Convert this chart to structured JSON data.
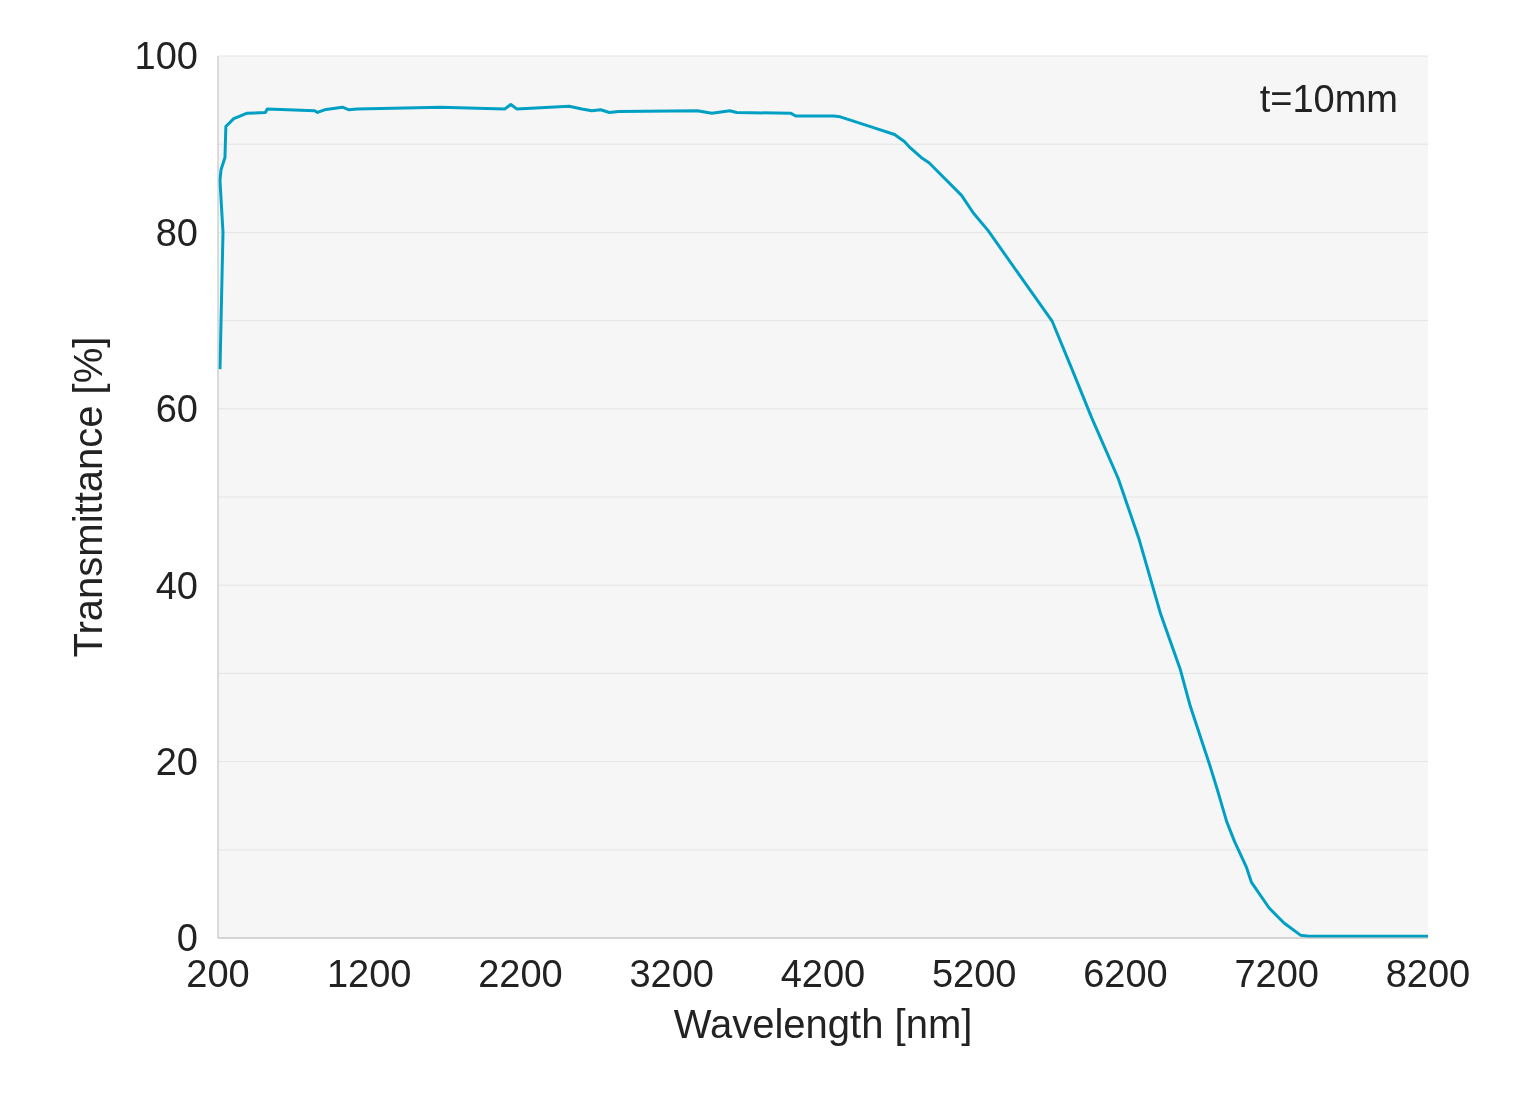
{
  "chart_data": {
    "type": "line",
    "xlabel": "Wavelength [nm]",
    "ylabel": "Transmittance [%]",
    "annotations": [
      "t=10mm"
    ],
    "xlim": [
      200,
      8200
    ],
    "xticks": [
      200,
      1200,
      2200,
      3200,
      4200,
      5200,
      6200,
      7200,
      8200
    ],
    "ylim": [
      0,
      100
    ],
    "yticks": [
      0,
      {
        "value": 10,
        "label": null
      },
      20,
      {
        "value": 30,
        "label": null
      },
      40,
      {
        "value": 50,
        "label": null
      },
      60,
      {
        "value": 70,
        "label": null
      },
      80,
      {
        "value": 90,
        "label": null
      },
      100
    ],
    "grid": "y",
    "marker": "none",
    "line_style": "solid",
    "series": [
      {
        "color": "#00a0c4",
        "x": [
          213,
          233,
          213,
          220,
          246,
          252,
          304,
          389,
          513,
          526,
          839,
          858,
          904,
          1022,
          1067,
          1119,
          1673,
          2097,
          2136,
          2175,
          2521,
          2606,
          2671,
          2730,
          2788,
          2847,
          3368,
          3466,
          3584,
          3629,
          3988,
          4020,
          4268,
          4314,
          4529,
          4673,
          4738,
          4770,
          4849,
          4901,
          5116,
          5194,
          5292,
          5559,
          5716,
          5846,
          5976,
          6152,
          6290,
          6433,
          6563,
          6628,
          6759,
          6811,
          6869,
          6922,
          7000,
          7033,
          7150,
          7248,
          7359,
          7412,
          8200
        ],
        "values": [
          64.5,
          80.0,
          85.9,
          87.1,
          88.5,
          92.0,
          92.9,
          93.5,
          93.6,
          94.0,
          93.8,
          93.6,
          93.9,
          94.2,
          93.9,
          94.0,
          94.2,
          94.0,
          94.5,
          94.0,
          94.3,
          94.0,
          93.8,
          93.9,
          93.6,
          93.7,
          93.8,
          93.5,
          93.8,
          93.6,
          93.5,
          93.2,
          93.2,
          93.1,
          91.9,
          91.1,
          90.3,
          89.7,
          88.5,
          87.9,
          84.2,
          82.2,
          80.2,
          73.7,
          69.9,
          64.5,
          59.0,
          52.1,
          45.2,
          36.7,
          30.4,
          26.3,
          19.5,
          16.6,
          13.2,
          10.9,
          8.0,
          6.3,
          3.4,
          1.7,
          0.3,
          0.2,
          0.2
        ]
      }
    ]
  }
}
